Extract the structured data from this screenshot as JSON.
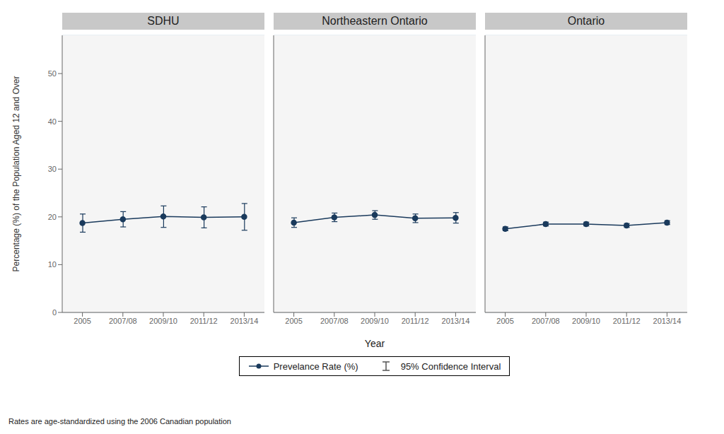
{
  "chart_data": [
    {
      "type": "line",
      "title": "SDHU",
      "ylabel": "Percentage (%) of the Population Aged 12 and Over",
      "footnote": "Rates are age-standardized using the 2006 Canadian population",
      "categories": [
        "2005",
        "2007/08",
        "2009/10",
        "2011/12",
        "2013/14"
      ],
      "series": [
        {
          "name": "Prevelance Rate (%)",
          "color": "#1a3a5c",
          "marker": "circle",
          "values": [
            18.7,
            19.5,
            20.1,
            19.9,
            20.0
          ],
          "ci_low": [
            16.8,
            17.9,
            17.8,
            17.7,
            17.2
          ],
          "ci_high": [
            20.6,
            21.1,
            22.3,
            22.1,
            22.8
          ],
          "ci_name": "95% Confidence Interval"
        }
      ],
      "ylim": [
        0,
        58
      ],
      "yticks": [
        0,
        10,
        20,
        30,
        40,
        50
      ],
      "grid": true
    },
    {
      "type": "line",
      "title": "Northeastern Ontario",
      "xlabel": "Year",
      "legend": "bottom",
      "categories": [
        "2005",
        "2007/08",
        "2009/10",
        "2011/12",
        "2013/14"
      ],
      "series": [
        {
          "name": "Prevelance Rate (%)",
          "color": "#1a3a5c",
          "marker": "circle",
          "values": [
            18.8,
            19.9,
            20.4,
            19.7,
            19.8
          ],
          "ci_low": [
            17.8,
            19.0,
            19.5,
            18.8,
            18.7
          ],
          "ci_high": [
            19.8,
            20.8,
            21.3,
            20.6,
            20.9
          ],
          "ci_name": "95% Confidence Interval"
        }
      ],
      "ylim": [
        0,
        58
      ],
      "yticks": [
        0,
        10,
        20,
        30,
        40,
        50
      ],
      "grid": true,
      "tick_labels": "x"
    },
    {
      "type": "line",
      "title": "Ontario",
      "categories": [
        "2005",
        "2007/08",
        "2009/10",
        "2011/12",
        "2013/14"
      ],
      "series": [
        {
          "name": "Prevelance Rate (%)",
          "color": "#1a3a5c",
          "marker": "circle",
          "values": [
            17.5,
            18.5,
            18.5,
            18.2,
            18.8
          ],
          "ci_low": [
            17.1,
            18.1,
            18.1,
            17.8,
            18.4
          ],
          "ci_high": [
            17.9,
            18.9,
            18.9,
            18.6,
            19.2
          ],
          "ci_name": "95% Confidence Interval"
        }
      ],
      "ylim": [
        0,
        58
      ],
      "yticks": [
        0,
        10,
        20,
        30,
        40,
        50
      ],
      "grid": true,
      "tick_labels": "x"
    }
  ]
}
